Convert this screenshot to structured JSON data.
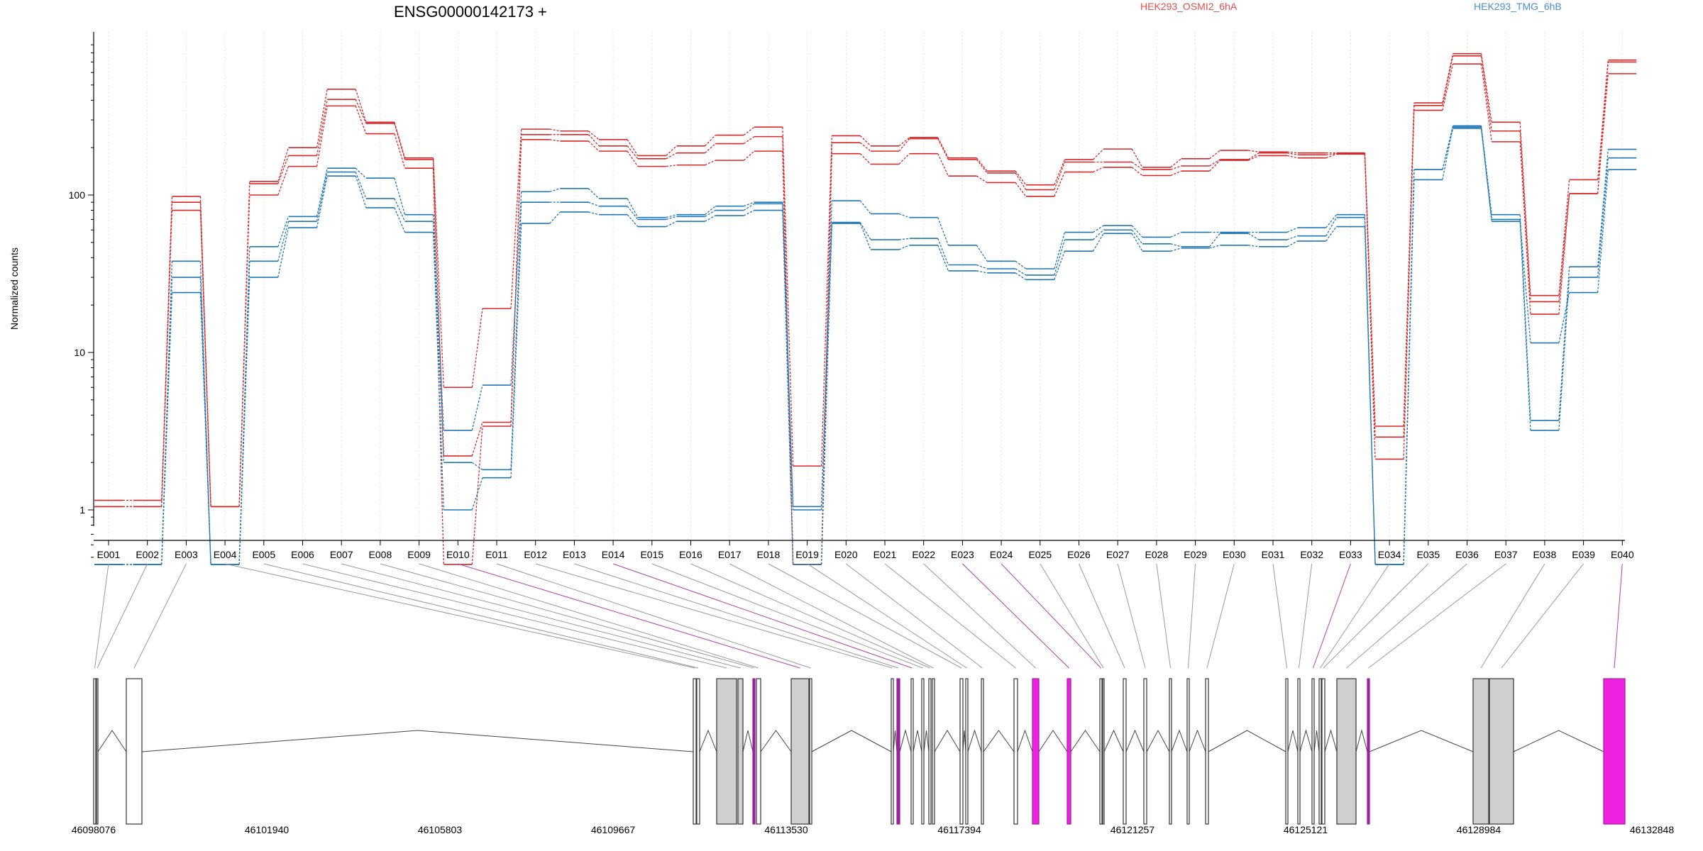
{
  "chart_data": {
    "type": "line",
    "title": "ENSG00000142173 +",
    "ylabel": "Normalized counts",
    "yscale": "log",
    "ylim": [
      0.5,
      1000
    ],
    "yticks": [
      1,
      10,
      100
    ],
    "grid": "vertical dotted lines at each exon",
    "legend_placement": "top",
    "categories": [
      "E001",
      "E002",
      "E003",
      "E004",
      "E005",
      "E006",
      "E007",
      "E008",
      "E009",
      "E010",
      "E011",
      "E012",
      "E013",
      "E014",
      "E015",
      "E016",
      "E017",
      "E018",
      "E019",
      "E020",
      "E021",
      "E022",
      "E023",
      "E024",
      "E025",
      "E026",
      "E027",
      "E028",
      "E029",
      "E030",
      "E031",
      "E032",
      "E033",
      "E034",
      "E035",
      "E036",
      "E037",
      "E038",
      "E039",
      "E040"
    ],
    "groups": [
      {
        "name": "HEK293_OSMI2_6hA",
        "color": "#d62728",
        "legend_color": "#e0504f"
      },
      {
        "name": "HEK293_TMG_6hB",
        "color": "#1f77b4",
        "legend_color": "#4a90c8"
      }
    ],
    "series": [
      {
        "group": 0,
        "values": [
          1.15,
          1.15,
          98,
          1.05,
          122,
          200,
          470,
          290,
          172,
          6,
          19,
          262,
          255,
          225,
          178,
          205,
          240,
          270,
          1.9,
          238,
          205,
          232,
          172,
          142,
          116,
          168,
          196,
          150,
          170,
          192,
          188,
          185,
          185,
          3.4,
          385,
          790,
          290,
          23,
          125,
          720
        ]
      },
      {
        "group": 0,
        "values": [
          1.05,
          1.05,
          90,
          1.05,
          118,
          178,
          405,
          285,
          168,
          2.2,
          3.6,
          242,
          242,
          205,
          170,
          185,
          212,
          235,
          0.45,
          215,
          190,
          228,
          168,
          138,
          108,
          162,
          162,
          145,
          153,
          168,
          185,
          180,
          183,
          2.9,
          370,
          765,
          255,
          21,
          102,
          700
        ]
      },
      {
        "group": 0,
        "values": [
          1.05,
          1.05,
          80,
          1.05,
          100,
          152,
          368,
          245,
          148,
          0.45,
          3.4,
          225,
          220,
          190,
          152,
          155,
          166,
          190,
          0.45,
          183,
          157,
          183,
          132,
          120,
          98,
          140,
          150,
          133,
          142,
          166,
          178,
          172,
          182,
          2.1,
          345,
          680,
          218,
          17.5,
          102,
          590
        ]
      },
      {
        "group": 1,
        "values": [
          0.45,
          0.45,
          38,
          0.45,
          47,
          73,
          148,
          128,
          75,
          3.2,
          6.2,
          105,
          110,
          95,
          72,
          75,
          85,
          90,
          1.05,
          92,
          76,
          72,
          48,
          38,
          34,
          58,
          64,
          54,
          58,
          58,
          58,
          62,
          75,
          0.45,
          145,
          275,
          75,
          3.7,
          35,
          195
        ]
      },
      {
        "group": 1,
        "values": [
          0.45,
          0.45,
          30,
          0.45,
          38,
          68,
          140,
          95,
          68,
          2.0,
          1.8,
          90,
          90,
          85,
          70,
          73,
          80,
          88,
          1.0,
          67,
          52,
          53,
          36,
          34,
          31,
          52,
          60,
          49,
          47,
          57,
          52,
          55,
          72,
          0.45,
          145,
          265,
          70,
          3.2,
          30,
          172
        ]
      },
      {
        "group": 1,
        "values": [
          0.45,
          0.45,
          24,
          0.45,
          30,
          62,
          132,
          83,
          58,
          1.0,
          1.6,
          66,
          78,
          75,
          63,
          68,
          74,
          80,
          0.45,
          66,
          45,
          48,
          33,
          32,
          29,
          44,
          57,
          44,
          46,
          48,
          47,
          51,
          63,
          0.45,
          125,
          270,
          68,
          11.5,
          24,
          145
        ]
      }
    ],
    "genomic_axis": {
      "start": 46098076,
      "end": 46132848,
      "ticks": [
        46098076,
        46101940,
        46105803,
        46109667,
        46113530,
        46117394,
        46121257,
        46125121,
        46128984,
        46132848
      ]
    },
    "exon_model": {
      "highlight_exons": [
        "E010",
        "E014",
        "E023",
        "E024",
        "E033",
        "E040"
      ],
      "colors": {
        "highlight_fill": "#f020e0",
        "highlight_thin": "#9f1f9f",
        "grey_fill": "#cfcfcf",
        "outline": "#333333",
        "connector": "#999999",
        "connector_highlight": "#b040b0"
      }
    }
  }
}
